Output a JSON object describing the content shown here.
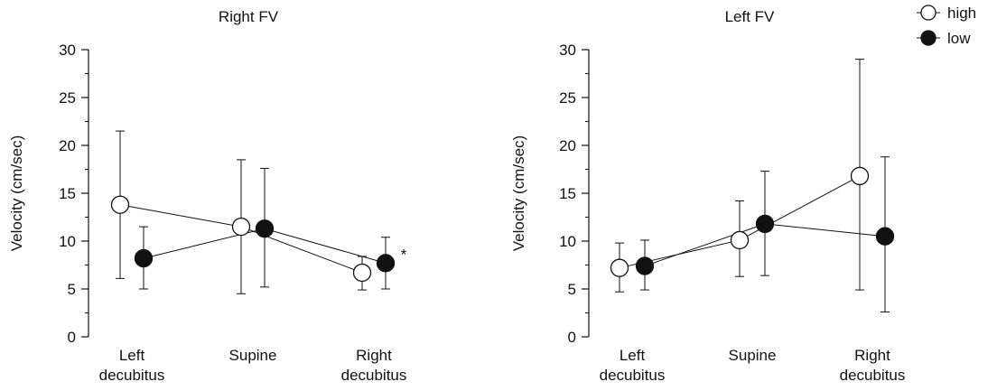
{
  "chart_data": [
    {
      "type": "line",
      "title": "Right FV",
      "ylabel": "Velocity (cm/sec)",
      "xlabel": "",
      "categories": [
        [
          "Left",
          "decubitus"
        ],
        [
          "Supine"
        ],
        [
          "Right",
          "decubitus"
        ]
      ],
      "ylim": [
        0,
        30
      ],
      "yticks": [
        0,
        5,
        10,
        15,
        20,
        25,
        30
      ],
      "grid": false,
      "error_bars": true,
      "series": [
        {
          "name": "high",
          "marker": "open-circle",
          "values": [
            13.8,
            11.5,
            6.7
          ],
          "upper": [
            21.5,
            18.5,
            8.4
          ],
          "lower": [
            6.1,
            4.5,
            4.9
          ]
        },
        {
          "name": "low",
          "marker": "filled-circle",
          "values": [
            8.2,
            11.3,
            7.7
          ],
          "upper": [
            11.5,
            17.6,
            10.4
          ],
          "lower": [
            5.0,
            5.2,
            5.0
          ]
        }
      ],
      "annotations": [
        {
          "text": "*",
          "category": 2
        }
      ]
    },
    {
      "type": "line",
      "title": "Left FV",
      "ylabel": "Velocity (cm/sec)",
      "xlabel": "",
      "categories": [
        [
          "Left",
          "decubitus"
        ],
        [
          "Supine"
        ],
        [
          "Right",
          "decubitus"
        ]
      ],
      "ylim": [
        0,
        30
      ],
      "yticks": [
        0,
        5,
        10,
        15,
        20,
        25,
        30
      ],
      "grid": false,
      "error_bars": true,
      "series": [
        {
          "name": "high",
          "marker": "open-circle",
          "values": [
            7.2,
            10.1,
            16.8
          ],
          "upper": [
            9.8,
            14.2,
            29.0
          ],
          "lower": [
            4.7,
            6.3,
            4.9
          ]
        },
        {
          "name": "low",
          "marker": "filled-circle",
          "values": [
            7.4,
            11.8,
            10.5
          ],
          "upper": [
            10.1,
            17.3,
            18.8
          ],
          "lower": [
            4.9,
            6.4,
            2.6
          ]
        }
      ],
      "annotations": []
    }
  ],
  "legend": {
    "position": "top-right",
    "items": [
      {
        "label": "high",
        "marker": "open-circle"
      },
      {
        "label": "low",
        "marker": "filled-circle"
      }
    ]
  },
  "colors": {
    "ink": "#111111",
    "open_fill": "#ffffff"
  }
}
